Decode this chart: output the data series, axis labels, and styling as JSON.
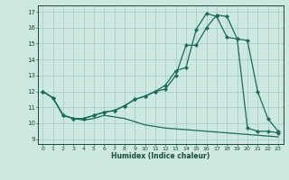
{
  "title": "",
  "xlabel": "Humidex (Indice chaleur)",
  "background_color": "#cce8e0",
  "grid_color": "#aacfc8",
  "line_color": "#1a6b5a",
  "xlim": [
    -0.5,
    23.5
  ],
  "ylim": [
    8.7,
    17.4
  ],
  "xticks": [
    0,
    1,
    2,
    3,
    4,
    5,
    6,
    7,
    8,
    9,
    10,
    11,
    12,
    13,
    14,
    15,
    16,
    17,
    18,
    19,
    20,
    21,
    22,
    23
  ],
  "yticks": [
    9,
    10,
    11,
    12,
    13,
    14,
    15,
    16,
    17
  ],
  "line1_x": [
    0,
    1,
    2,
    3,
    4,
    5,
    6,
    7,
    8,
    9,
    10,
    11,
    12,
    13,
    14,
    15,
    16,
    17,
    18,
    19,
    20,
    21,
    22,
    23
  ],
  "line1_y": [
    12.0,
    11.6,
    10.5,
    10.3,
    10.3,
    10.5,
    10.7,
    10.8,
    11.1,
    11.5,
    11.7,
    12.0,
    12.15,
    13.0,
    14.9,
    14.9,
    16.0,
    16.8,
    16.7,
    15.3,
    15.2,
    12.0,
    10.3,
    9.5
  ],
  "line2_x": [
    0,
    1,
    2,
    3,
    4,
    5,
    6,
    7,
    8,
    9,
    10,
    11,
    12,
    13,
    14,
    15,
    16,
    17,
    18,
    19,
    20,
    21,
    22,
    23
  ],
  "line2_y": [
    12.0,
    11.6,
    10.5,
    10.3,
    10.2,
    10.3,
    10.5,
    10.4,
    10.3,
    10.1,
    9.9,
    9.8,
    9.7,
    9.65,
    9.6,
    9.55,
    9.5,
    9.45,
    9.4,
    9.35,
    9.3,
    9.25,
    9.2,
    9.15
  ],
  "line3_x": [
    0,
    1,
    2,
    3,
    4,
    5,
    6,
    7,
    8,
    9,
    10,
    11,
    12,
    13,
    14,
    15,
    16,
    17,
    18,
    19,
    20,
    21,
    22,
    23
  ],
  "line3_y": [
    12.0,
    11.6,
    10.5,
    10.3,
    10.3,
    10.5,
    10.7,
    10.8,
    11.1,
    11.5,
    11.7,
    12.0,
    12.4,
    13.3,
    13.5,
    15.9,
    16.9,
    16.7,
    15.4,
    15.3,
    9.7,
    9.5,
    9.5,
    9.4
  ]
}
